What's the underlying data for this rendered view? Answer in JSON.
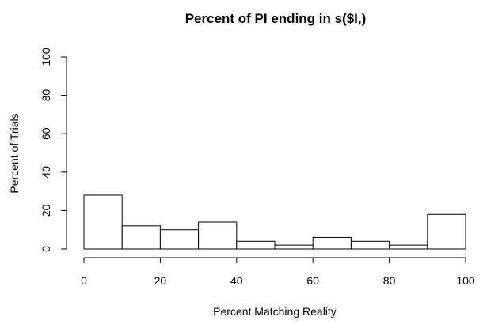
{
  "chart_data": {
    "type": "bar",
    "title": "Percent of PI ending in s($I,)",
    "xlabel": "Percent Matching Reality",
    "ylabel": "Percent of Trials",
    "bin_edges": [
      0,
      10,
      20,
      30,
      40,
      50,
      60,
      70,
      80,
      90,
      100
    ],
    "values": [
      28,
      12,
      10,
      14,
      4,
      2,
      6,
      4,
      2,
      18
    ],
    "xlim": [
      0,
      100
    ],
    "ylim": [
      0,
      100
    ],
    "xticks": [
      0,
      20,
      40,
      60,
      80,
      100
    ],
    "yticks": [
      0,
      20,
      40,
      60,
      80,
      100
    ],
    "grid": false,
    "legend": "none"
  }
}
